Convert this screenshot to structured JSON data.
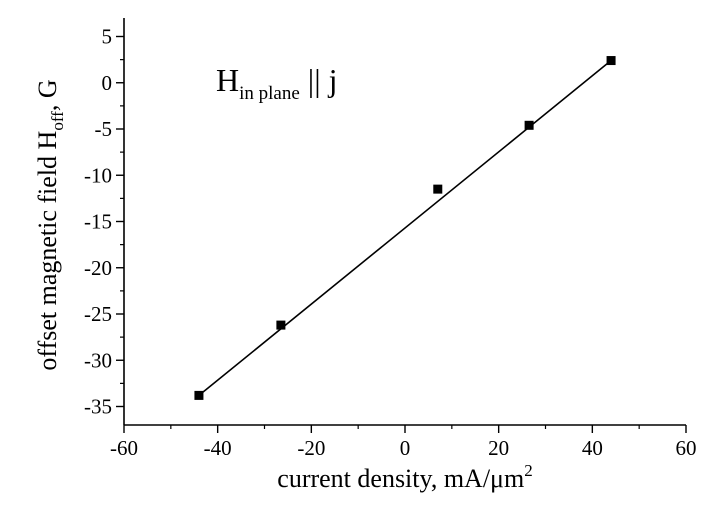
{
  "chart_data": {
    "type": "line",
    "annotation": {
      "main": "H",
      "sub": "in plane",
      "rest": " || j"
    },
    "xlabel": {
      "text": "current density, mA/μm",
      "sup": "2"
    },
    "ylabel": {
      "main": "offset magnetic field H",
      "sub": "off",
      "rest": ", G"
    },
    "xlim": [
      -60,
      60
    ],
    "ylim": [
      -37,
      7
    ],
    "xticks": [
      -60,
      -40,
      -20,
      0,
      20,
      40,
      60
    ],
    "yticks": [
      5,
      0,
      -5,
      -10,
      -15,
      -20,
      -25,
      -30,
      -35
    ],
    "grid": false,
    "series": [
      {
        "marker": "square",
        "color": "#000000",
        "x": [
          -44,
          -26.5,
          7,
          26.5,
          44
        ],
        "y": [
          -33.8,
          -26.2,
          -11.5,
          -4.6,
          2.4
        ]
      }
    ],
    "fit_line": {
      "x": [
        -44,
        44
      ],
      "y": [
        -33.8,
        2.4
      ]
    }
  }
}
